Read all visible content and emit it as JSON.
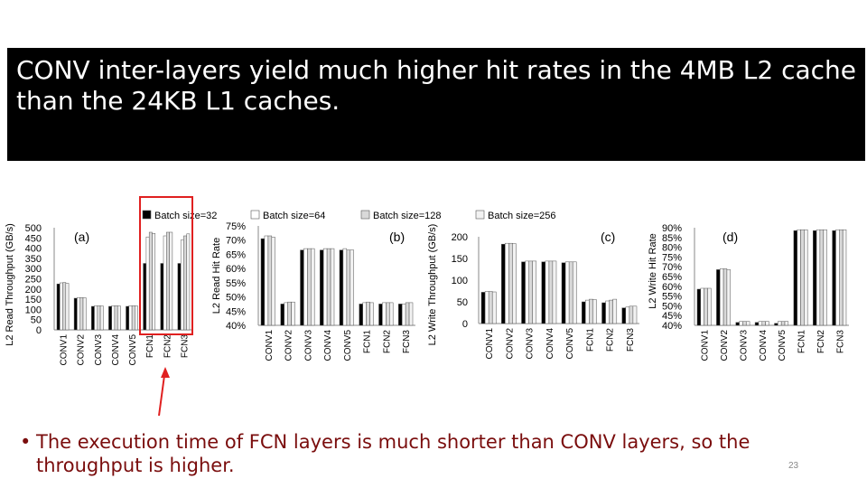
{
  "slide": {
    "title": "CONV inter-layers yield much higher hit rates in the 4MB L2 cache than the 24KB L1 caches.",
    "bullet_symbol": "•",
    "bullet": "The execution time of FCN layers is much shorter than CONV layers, so the throughput is higher.",
    "page_number": "23",
    "highlight_color": "#e02020",
    "bullet_color": "#7a0d0d"
  },
  "chart_data": {
    "type": "bar",
    "legend": [
      "Batch size=32",
      "Batch size=64",
      "Batch size=128",
      "Batch size=256"
    ],
    "legend_placement": "top",
    "series_colors": [
      "#000000",
      "#ffffff",
      "#d9d9d9",
      "#f2f2f2"
    ],
    "categories": [
      "CONV1",
      "CONV2",
      "CONV3",
      "CONV4",
      "CONV5",
      "FCN1",
      "FCN2",
      "FCN3"
    ],
    "panels": [
      {
        "label": "(a)",
        "ylabel": "L2 Read Throughput (GB/s)",
        "yticks": [
          "500",
          "450",
          "400",
          "350",
          "300",
          "250",
          "200",
          "150",
          "100",
          "50",
          "0"
        ],
        "ylim": [
          0,
          500
        ],
        "series": [
          {
            "name": "Batch size=32",
            "values": [
              225,
              155,
              115,
              115,
              115,
              325,
              325,
              325
            ]
          },
          {
            "name": "Batch size=64",
            "values": [
              230,
              158,
              118,
              118,
              118,
              455,
              460,
              440
            ]
          },
          {
            "name": "Batch size=128",
            "values": [
              232,
              158,
              118,
              118,
              118,
              478,
              478,
              460
            ]
          },
          {
            "name": "Batch size=256",
            "values": [
              228,
              157,
              117,
              117,
              117,
              472,
              478,
              470
            ]
          }
        ]
      },
      {
        "label": "(b)",
        "ylabel": "L2 Read Hit Rate",
        "yticks": [
          "75%",
          "70%",
          "65%",
          "60%",
          "55%",
          "50%",
          "45%",
          "40%"
        ],
        "ylim": [
          40,
          75
        ],
        "series": [
          {
            "name": "Batch size=32",
            "values": [
              70.5,
              47.5,
              66.5,
              66.5,
              66.5,
              47.5,
              47.5,
              47.5
            ]
          },
          {
            "name": "Batch size=64",
            "values": [
              71.5,
              48.0,
              67.0,
              67.0,
              67.0,
              48.0,
              48.0,
              47.5
            ]
          },
          {
            "name": "Batch size=128",
            "values": [
              71.5,
              48.2,
              67.0,
              67.0,
              66.5,
              48.2,
              48.0,
              48.0
            ]
          },
          {
            "name": "Batch size=256",
            "values": [
              71.0,
              48.2,
              67.0,
              67.0,
              66.5,
              48.0,
              48.0,
              48.0
            ]
          }
        ]
      },
      {
        "label": "(c)",
        "ylabel": "L2 Write Throughput (GB/s)",
        "yticks": [
          "200",
          "150",
          "100",
          "50",
          "0"
        ],
        "ylim": [
          0,
          200
        ],
        "series": [
          {
            "name": "Batch size=32",
            "values": [
              72,
              183,
              142,
              142,
              140,
              50,
              48,
              36
            ]
          },
          {
            "name": "Batch size=64",
            "values": [
              74,
              185,
              144,
              144,
              142,
              54,
              52,
              38
            ]
          },
          {
            "name": "Batch size=128",
            "values": [
              74,
              185,
              144,
              144,
              142,
              56,
              54,
              40
            ]
          },
          {
            "name": "Batch size=256",
            "values": [
              73,
              184,
              144,
              144,
              142,
              55,
              56,
              40
            ]
          }
        ]
      },
      {
        "label": "(d)",
        "ylabel": "L2 Write Hit Rate",
        "yticks": [
          "90%",
          "85%",
          "80%",
          "75%",
          "70%",
          "65%",
          "60%",
          "55%",
          "50%",
          "45%",
          "40%"
        ],
        "ylim": [
          40,
          90
        ],
        "series": [
          {
            "name": "Batch size=32",
            "values": [
              58.5,
              68.5,
              41.5,
              41.5,
              41.0,
              88.5,
              88.5,
              88.5
            ]
          },
          {
            "name": "Batch size=64",
            "values": [
              59.0,
              69.0,
              42.0,
              42.0,
              42.0,
              89.0,
              89.0,
              89.0
            ]
          },
          {
            "name": "Batch size=128",
            "values": [
              59.0,
              69.0,
              42.0,
              42.0,
              42.0,
              89.0,
              89.0,
              89.0
            ]
          },
          {
            "name": "Batch size=256",
            "values": [
              59.0,
              68.5,
              42.0,
              42.0,
              42.0,
              89.0,
              89.0,
              89.0
            ]
          }
        ]
      }
    ]
  }
}
